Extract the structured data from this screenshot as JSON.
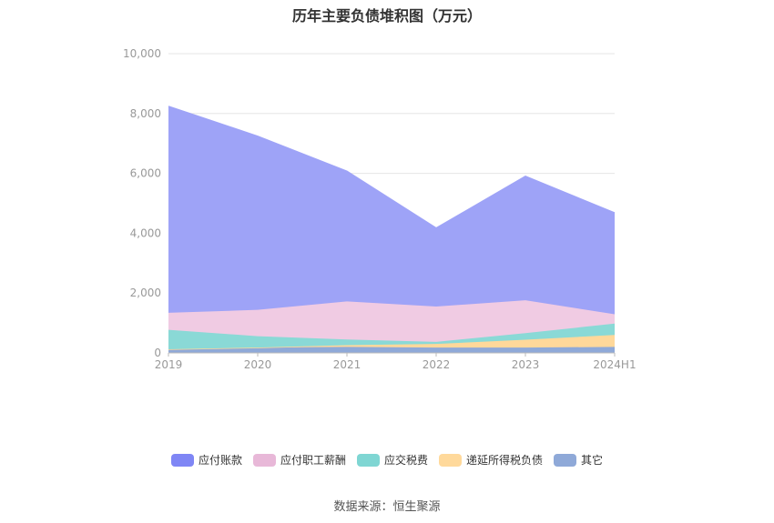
{
  "chart_data": {
    "type": "area",
    "stacked": true,
    "title": "历年主要负债堆积图（万元）",
    "categories": [
      "2019",
      "2020",
      "2021",
      "2022",
      "2023",
      "2024H1"
    ],
    "ylim": [
      0,
      10000
    ],
    "yticks": [
      "0",
      "2,000",
      "4,000",
      "6,000",
      "8,000",
      "10,000"
    ],
    "grid": true,
    "legend_position": "bottom",
    "series": [
      {
        "name": "其它",
        "color": "#8fa9d8",
        "values": [
          120,
          180,
          200,
          180,
          180,
          200
        ]
      },
      {
        "name": "递延所得税负债",
        "color": "#ffd89a",
        "values": [
          0,
          0,
          60,
          120,
          260,
          400
        ]
      },
      {
        "name": "应交税费",
        "color": "#8ad9d6",
        "values": [
          650,
          380,
          190,
          70,
          220,
          380
        ]
      },
      {
        "name": "应付职工薪酬",
        "color": "#f0cbe3",
        "values": [
          570,
          880,
          1270,
          1180,
          1100,
          310
        ]
      },
      {
        "name": "应付账款",
        "color": "#9ea3f7",
        "values": [
          6900,
          5800,
          4350,
          2620,
          4140,
          3390
        ]
      }
    ]
  },
  "legend_order": [
    4,
    3,
    2,
    1,
    0
  ],
  "legend_colors": [
    "#7f86f5",
    "#e8b8d8",
    "#7fd6d3",
    "#ffd99b",
    "#8fa9d8"
  ],
  "source_note": "数据来源：恒生聚源"
}
